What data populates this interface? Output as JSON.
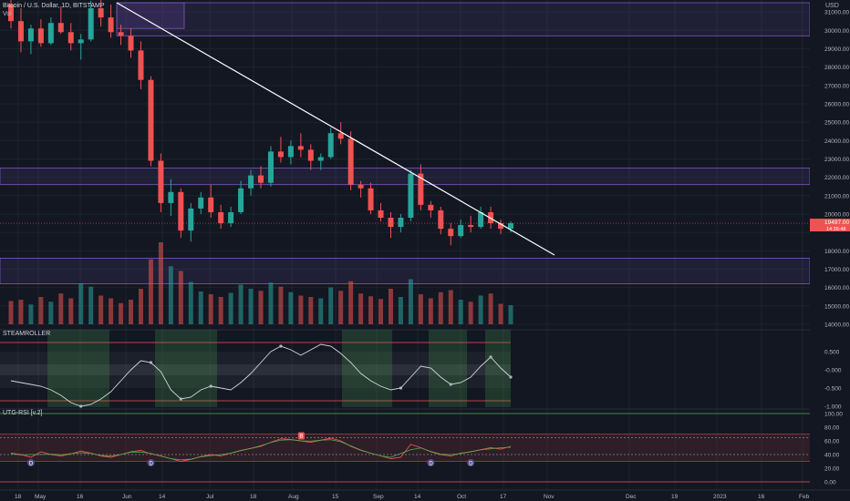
{
  "header": {
    "symbol_line": "Bitcoin / U.S. Dollar, 1D, BITSTAMP",
    "volume_label": "Vol",
    "currency": "USD"
  },
  "price_axis": {
    "ticks": [
      "31000.00",
      "30000.00",
      "29000.00",
      "28000.00",
      "27000.00",
      "26000.00",
      "25000.00",
      "24000.00",
      "23000.00",
      "22000.00",
      "21000.00",
      "20000.00",
      "18000.00",
      "17000.00",
      "16000.00",
      "15000.00",
      "14000.00"
    ],
    "last_price": "19497.00",
    "countdown": "14:35:48"
  },
  "time_axis": {
    "labels": [
      "18",
      "May",
      "16",
      "Jun",
      "14",
      "Jul",
      "18",
      "Aug",
      "15",
      "Sep",
      "14",
      "Oct",
      "17",
      "Nov",
      "Dec",
      "19",
      "2023",
      "16",
      "Feb"
    ]
  },
  "steamroller": {
    "title": "STEAMROLLER",
    "ticks": [
      "0.500",
      "-0.000",
      "-0.500",
      "-1.000"
    ]
  },
  "rsi": {
    "title": "UTG-RSI [v.2]",
    "ticks": [
      "100.00",
      "80.00",
      "60.00",
      "40.00",
      "20.00",
      "0.00"
    ],
    "markers": [
      "D",
      "D",
      "D",
      "D"
    ],
    "top_marker": "B"
  },
  "colors": {
    "background": "#131722",
    "up": "#26a69a",
    "down": "#ef5350",
    "zone": "#7e57c2",
    "trendline": "#ffffff",
    "price_tag": "#ef5350"
  },
  "chart_data": {
    "type": "candlestick",
    "series": [
      {
        "name": "BTC/USD",
        "kind": "ohlc",
        "values": [
          [
            31400,
            31900,
            30100,
            30500
          ],
          [
            30500,
            31200,
            28800,
            29400
          ],
          [
            29400,
            30300,
            28700,
            30100
          ],
          [
            30100,
            30600,
            29100,
            29300
          ],
          [
            29300,
            30700,
            29200,
            30400
          ],
          [
            30400,
            31300,
            29800,
            29900
          ],
          [
            29900,
            30400,
            28900,
            29300
          ],
          [
            29300,
            29800,
            28400,
            29500
          ],
          [
            29500,
            31600,
            29400,
            31200
          ],
          [
            31200,
            31700,
            30200,
            30700
          ],
          [
            30700,
            31400,
            29600,
            29900
          ],
          [
            29900,
            30300,
            29200,
            29700
          ],
          [
            29700,
            30100,
            28500,
            28900
          ],
          [
            28900,
            29400,
            26800,
            27300
          ],
          [
            27300,
            27500,
            22600,
            22900
          ],
          [
            22900,
            23300,
            20100,
            20600
          ],
          [
            20600,
            21900,
            19900,
            21200
          ],
          [
            21200,
            21400,
            18700,
            19100
          ],
          [
            19100,
            20600,
            18500,
            20300
          ],
          [
            20300,
            21200,
            20000,
            20900
          ],
          [
            20900,
            21600,
            19800,
            20100
          ],
          [
            20100,
            20500,
            19200,
            19500
          ],
          [
            19500,
            20400,
            19300,
            20100
          ],
          [
            20100,
            21800,
            20000,
            21400
          ],
          [
            21400,
            22400,
            21000,
            22100
          ],
          [
            22100,
            22600,
            21400,
            21700
          ],
          [
            21700,
            23700,
            21500,
            23400
          ],
          [
            23400,
            24200,
            22800,
            23100
          ],
          [
            23100,
            24000,
            22700,
            23700
          ],
          [
            23700,
            24400,
            23100,
            23500
          ],
          [
            23500,
            23800,
            22400,
            22900
          ],
          [
            22900,
            23300,
            22400,
            23100
          ],
          [
            23100,
            24700,
            23000,
            24400
          ],
          [
            24400,
            25000,
            23800,
            24100
          ],
          [
            24100,
            24500,
            21300,
            21600
          ],
          [
            21600,
            21800,
            20900,
            21400
          ],
          [
            21400,
            21700,
            20000,
            20200
          ],
          [
            20200,
            20600,
            19600,
            19800
          ],
          [
            19800,
            20100,
            18700,
            19300
          ],
          [
            19300,
            20000,
            19000,
            19800
          ],
          [
            19800,
            22400,
            19600,
            22200
          ],
          [
            22200,
            22700,
            20200,
            20500
          ],
          [
            20500,
            20700,
            19800,
            20200
          ],
          [
            20200,
            20400,
            18900,
            19200
          ],
          [
            19200,
            19500,
            18300,
            18800
          ],
          [
            18800,
            19700,
            18700,
            19400
          ],
          [
            19400,
            19900,
            19000,
            19300
          ],
          [
            19300,
            20400,
            19200,
            20100
          ],
          [
            20100,
            20400,
            19200,
            19500
          ],
          [
            19500,
            19700,
            18900,
            19200
          ],
          [
            19200,
            19600,
            19000,
            19500
          ]
        ]
      },
      {
        "name": "Volume",
        "kind": "bar",
        "values": [
          34,
          36,
          29,
          40,
          33,
          45,
          38,
          60,
          55,
          42,
          38,
          31,
          36,
          52,
          95,
          120,
          85,
          78,
          62,
          48,
          44,
          40,
          46,
          58,
          52,
          49,
          61,
          55,
          47,
          42,
          40,
          38,
          54,
          49,
          63,
          45,
          41,
          37,
          52,
          40,
          66,
          44,
          38,
          47,
          50,
          36,
          33,
          42,
          45,
          30,
          28
        ]
      },
      {
        "name": "STEAMROLLER",
        "kind": "line",
        "values": [
          -0.3,
          -0.35,
          -0.4,
          -0.45,
          -0.55,
          -0.7,
          -0.9,
          -1.0,
          -0.95,
          -0.8,
          -0.6,
          -0.3,
          0.0,
          0.25,
          0.2,
          -0.05,
          -0.55,
          -0.8,
          -0.75,
          -0.55,
          -0.45,
          -0.5,
          -0.55,
          -0.35,
          -0.1,
          0.2,
          0.5,
          0.65,
          0.55,
          0.4,
          0.55,
          0.7,
          0.65,
          0.45,
          0.2,
          -0.1,
          -0.3,
          -0.45,
          -0.55,
          -0.5,
          -0.2,
          0.1,
          0.05,
          -0.2,
          -0.4,
          -0.35,
          -0.2,
          0.1,
          0.35,
          0.05,
          -0.2
        ]
      },
      {
        "name": "RSI",
        "kind": "line",
        "values": [
          42,
          40,
          36,
          44,
          40,
          38,
          41,
          45,
          42,
          38,
          36,
          40,
          44,
          46,
          41,
          38,
          34,
          30,
          33,
          37,
          40,
          38,
          42,
          46,
          49,
          52,
          58,
          63,
          62,
          60,
          58,
          61,
          64,
          60,
          52,
          46,
          42,
          38,
          34,
          36,
          55,
          50,
          44,
          40,
          38,
          42,
          44,
          47,
          50,
          48,
          52
        ]
      }
    ],
    "y_range": [
      14000,
      31500
    ],
    "annotations": [
      "descending trendline",
      "supply zones",
      "demand zone"
    ]
  }
}
